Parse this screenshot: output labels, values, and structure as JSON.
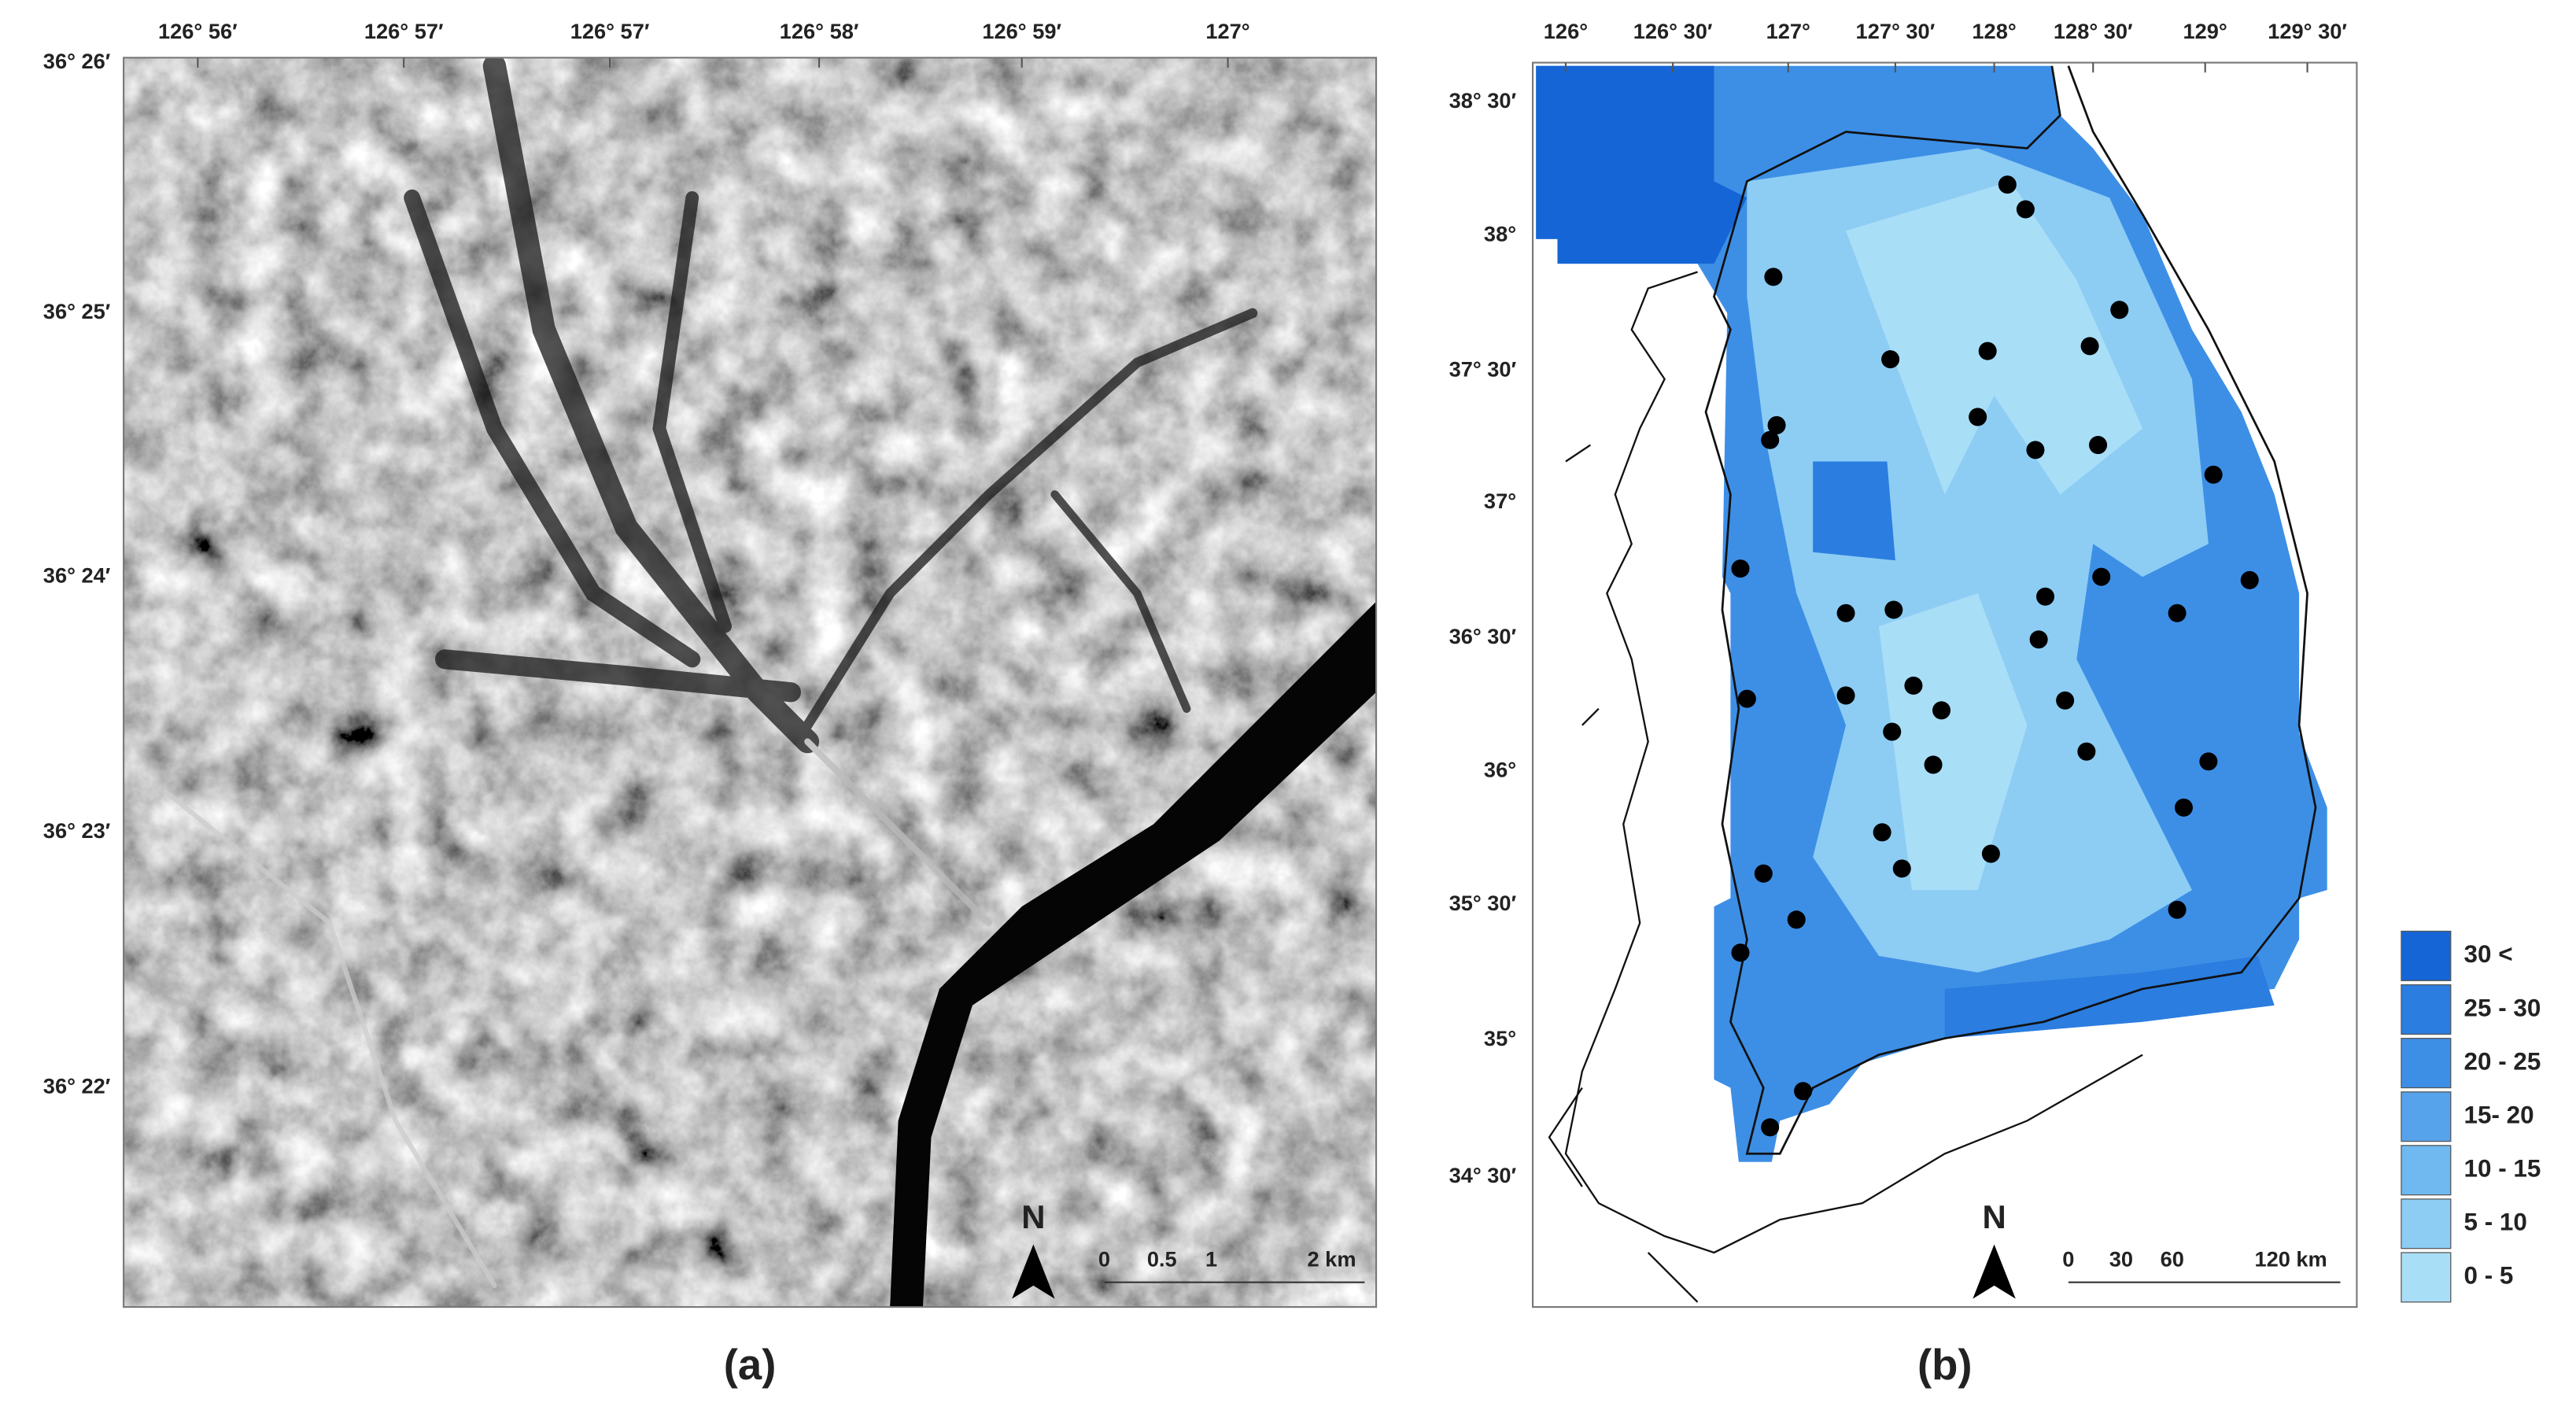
{
  "panel_a": {
    "top_labels": [
      "126° 56′",
      "126° 57′",
      "126° 57′",
      "126° 58′",
      "126° 59′",
      "127°"
    ],
    "left_labels": [
      "36° 26′",
      "36° 25′",
      "36° 24′",
      "36° 23′",
      "36° 22′"
    ],
    "north": "N",
    "scale": [
      "0",
      "0.5",
      "1",
      "2 km"
    ],
    "caption": "(a)"
  },
  "panel_b": {
    "top_labels": [
      "126°",
      "126° 30′",
      "127°",
      "127° 30′",
      "128°",
      "128° 30′",
      "129°",
      "129° 30′"
    ],
    "left_labels": [
      "38° 30′",
      "38°",
      "37° 30′",
      "37°",
      "36° 30′",
      "36°",
      "35° 30′",
      "35°",
      "34° 30′"
    ],
    "north": "N",
    "scale": [
      "0",
      "30",
      "60",
      "120 km"
    ],
    "legend": [
      "30 <",
      "25 - 30",
      "20 - 25",
      "15- 20",
      "10 - 15",
      "5 - 10",
      "0 - 5"
    ],
    "caption": "(b)"
  }
}
